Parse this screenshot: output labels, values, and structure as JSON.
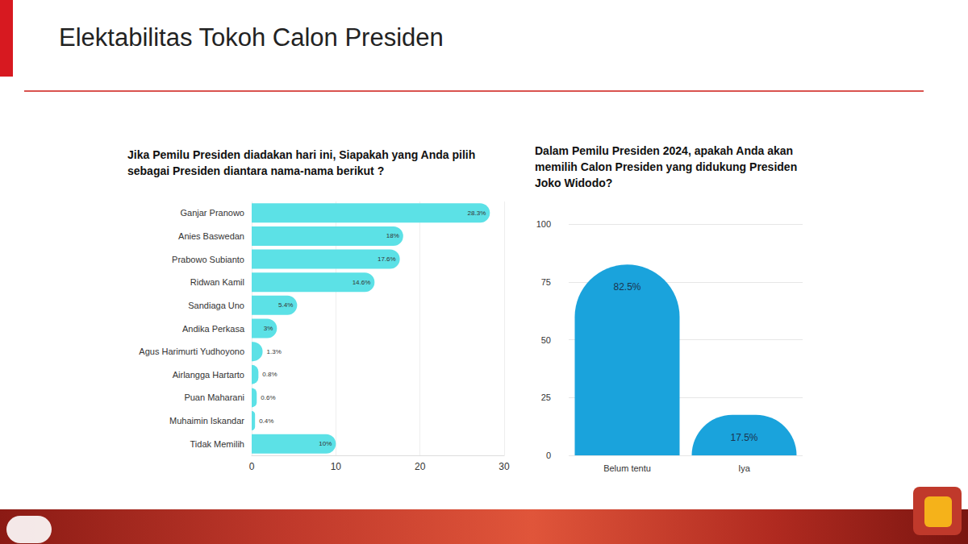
{
  "title": "Elektabilitas Tokoh Calon Presiden",
  "chart_data": [
    {
      "type": "bar",
      "title": "Jika Pemilu Presiden diadakan hari ini, Siapakah yang Anda pilih sebagai Presiden diantara nama-nama berikut ?",
      "orientation": "horizontal",
      "categories": [
        "Ganjar Pranowo",
        "Anies Baswedan",
        "Prabowo Subianto",
        "Ridwan Kamil",
        "Sandiaga Uno",
        "Andika Perkasa",
        "Agus Harimurti Yudhoyono",
        "Airlangga Hartarto",
        "Puan Maharani",
        "Muhaimin Iskandar",
        "Tidak Memilih"
      ],
      "values": [
        28.3,
        18,
        17.6,
        14.6,
        5.4,
        3,
        1.3,
        0.8,
        0.6,
        0.4,
        10
      ],
      "value_labels": [
        "28.3%",
        "18%",
        "17.6%",
        "14.6%",
        "5.4%",
        "3%",
        "1.3%",
        "0.8%",
        "0.6%",
        "0.4%",
        "10%"
      ],
      "data_labels": true,
      "color": "#5ce1e6",
      "xlim": [
        0,
        30
      ],
      "xticks": [
        0,
        10,
        20,
        30
      ],
      "grid": true
    },
    {
      "type": "bar",
      "title": "Dalam Pemilu Presiden 2024, apakah Anda akan memilih Calon Presiden yang didukung Presiden Joko Widodo?",
      "categories": [
        "Belum tentu",
        "Iya"
      ],
      "values": [
        82.5,
        17.5
      ],
      "value_labels": [
        "82.5%",
        "17.5%"
      ],
      "data_labels": true,
      "color": "#1aa3dc",
      "ylim": [
        0,
        100
      ],
      "yticks": [
        0,
        25,
        50,
        75,
        100
      ],
      "grid": true
    }
  ]
}
